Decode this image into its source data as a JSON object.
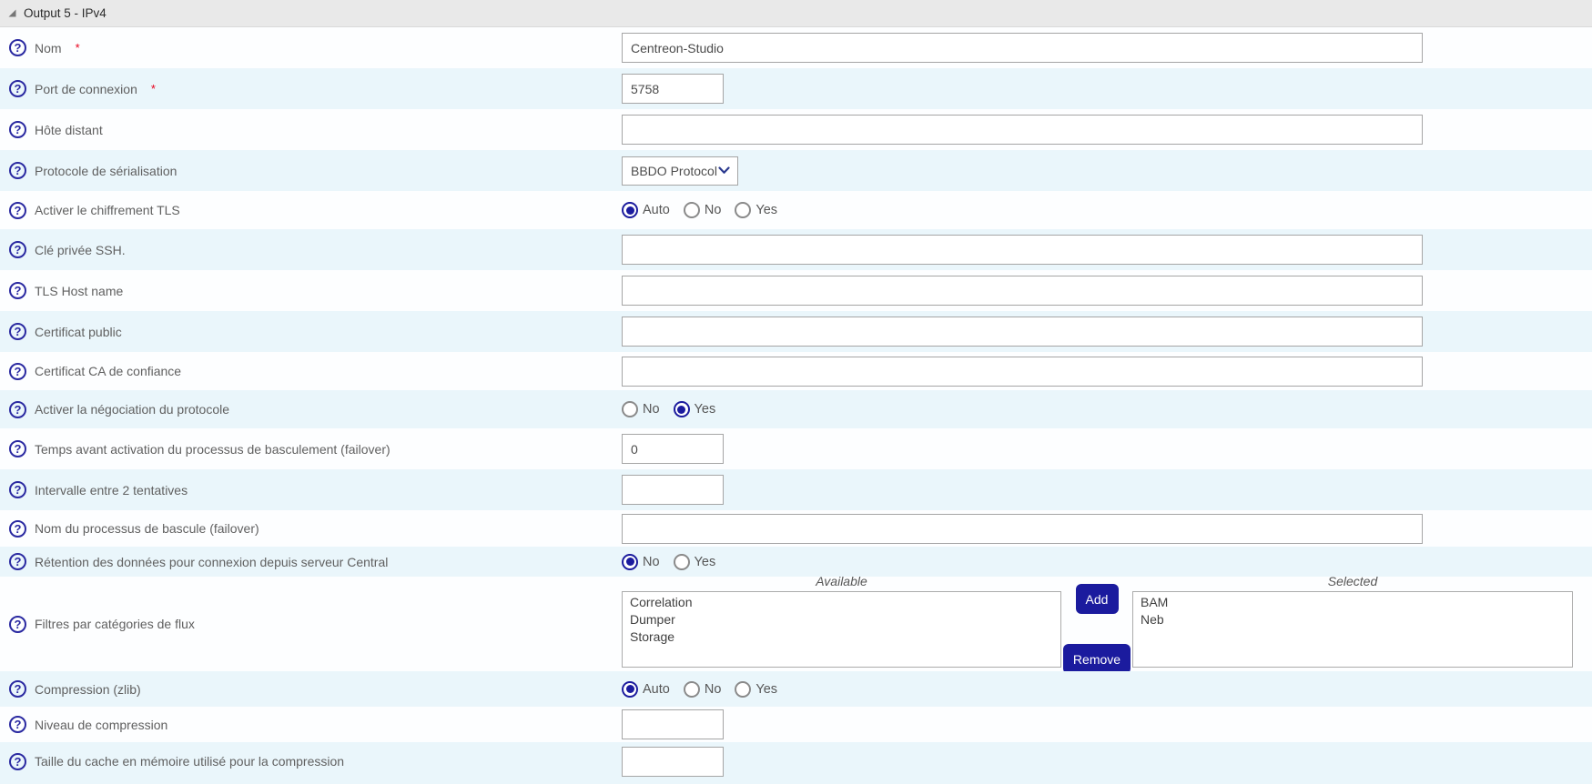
{
  "panel": {
    "title": "Output 5 - IPv4"
  },
  "required_marker": "*",
  "duallist_labels": {
    "available": "Available",
    "selected": "Selected",
    "add": "Add",
    "remove": "Remove"
  },
  "rows": [
    {
      "label": "Nom",
      "required": "*",
      "value": "Centreon-Studio"
    },
    {
      "label": "Port de connexion",
      "required": "*",
      "value": "5758"
    },
    {
      "label": "Hôte distant",
      "value": ""
    },
    {
      "label": "Protocole de sérialisation",
      "value": "BBDO Protocol"
    },
    {
      "label": "Activer le chiffrement TLS",
      "value": "Auto",
      "options": [
        "Auto",
        "No",
        "Yes"
      ]
    },
    {
      "label": "Clé privée SSH.",
      "value": ""
    },
    {
      "label": "TLS Host name",
      "value": ""
    },
    {
      "label": "Certificat public",
      "value": ""
    },
    {
      "label": "Certificat CA de confiance",
      "value": ""
    },
    {
      "label": "Activer la négociation du protocole",
      "value": "Yes",
      "options": [
        "No",
        "Yes"
      ]
    },
    {
      "label": "Temps avant activation du processus de basculement (failover)",
      "value": "0"
    },
    {
      "label": "Intervalle entre 2 tentatives",
      "value": ""
    },
    {
      "label": "Nom du processus de bascule (failover)",
      "value": ""
    },
    {
      "label": "Rétention des données pour connexion depuis serveur Central",
      "value": "No",
      "options": [
        "No",
        "Yes"
      ]
    },
    {
      "label": "Filtres par catégories de flux",
      "available_items": [
        "Correlation",
        "Dumper",
        "Storage"
      ],
      "selected_items": [
        "BAM",
        "Neb"
      ]
    },
    {
      "label": "Compression (zlib)",
      "value": "Auto",
      "options": [
        "Auto",
        "No",
        "Yes"
      ]
    },
    {
      "label": "Niveau de compression",
      "value": ""
    },
    {
      "label": "Taille du cache en mémoire utilisé pour la compression",
      "value": ""
    }
  ],
  "colors": {
    "accent_navy": "#1b1b9e",
    "row_alt_blue": "#eaf6fb",
    "required_red": "#e8001c"
  }
}
